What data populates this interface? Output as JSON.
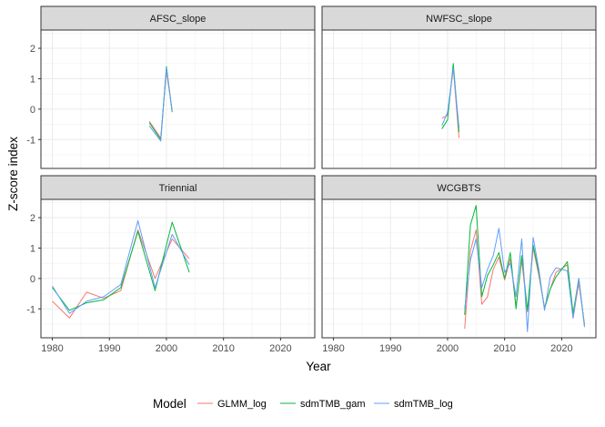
{
  "chart_data": {
    "type": "line",
    "xlabel": "Year",
    "ylabel": "Z-score index",
    "xlim": [
      1978,
      2026
    ],
    "ylim": [
      -1.95,
      2.6
    ],
    "x_ticks": [
      1980,
      1990,
      2000,
      2010,
      2020
    ],
    "y_ticks": [
      -1,
      0,
      1,
      2
    ],
    "grid": true,
    "legend": {
      "title": "Model",
      "position": "bottom",
      "entries": [
        {
          "name": "GLMM_log",
          "color": "#F8766D"
        },
        {
          "name": "sdmTMB_gam",
          "color": "#00BA38"
        },
        {
          "name": "sdmTMB_log",
          "color": "#619CFF"
        }
      ]
    },
    "panels": [
      {
        "title": "AFSC_slope",
        "series": [
          {
            "name": "GLMM_log",
            "x": [
              1997,
              1999,
              2000,
              2001
            ],
            "y": [
              -0.4,
              -0.95,
              1.25,
              -0.05
            ]
          },
          {
            "name": "sdmTMB_gam",
            "x": [
              1997,
              1999,
              2000,
              2001
            ],
            "y": [
              -0.45,
              -1.0,
              1.4,
              -0.1
            ]
          },
          {
            "name": "sdmTMB_log",
            "x": [
              1997,
              1999,
              2000,
              2001
            ],
            "y": [
              -0.55,
              -1.05,
              1.35,
              -0.05
            ]
          }
        ]
      },
      {
        "title": "NWFSC_slope",
        "series": [
          {
            "name": "GLMM_log",
            "x": [
              1999,
              2000,
              2001,
              2002
            ],
            "y": [
              -0.3,
              -0.2,
              1.35,
              -0.95
            ]
          },
          {
            "name": "sdmTMB_gam",
            "x": [
              1999,
              2000,
              2001,
              2002
            ],
            "y": [
              -0.65,
              -0.35,
              1.5,
              -0.75
            ]
          },
          {
            "name": "sdmTMB_log",
            "x": [
              1999,
              2000,
              2001,
              2002
            ],
            "y": [
              -0.55,
              -0.1,
              1.35,
              -0.6
            ]
          }
        ]
      },
      {
        "title": "Triennial",
        "series": [
          {
            "name": "GLMM_log",
            "x": [
              1980,
              1983,
              1986,
              1989,
              1992,
              1995,
              1998,
              2001,
              2004
            ],
            "y": [
              -0.75,
              -1.3,
              -0.45,
              -0.65,
              -0.4,
              1.6,
              0.0,
              1.3,
              0.65
            ]
          },
          {
            "name": "sdmTMB_gam",
            "x": [
              1980,
              1983,
              1986,
              1989,
              1992,
              1995,
              1998,
              2001,
              2004
            ],
            "y": [
              -0.3,
              -1.05,
              -0.8,
              -0.7,
              -0.3,
              1.55,
              -0.4,
              1.85,
              0.2
            ]
          },
          {
            "name": "sdmTMB_log",
            "x": [
              1980,
              1983,
              1986,
              1989,
              1992,
              1995,
              1998,
              2001,
              2004
            ],
            "y": [
              -0.25,
              -1.15,
              -0.75,
              -0.6,
              -0.2,
              1.9,
              -0.3,
              1.45,
              0.45
            ]
          }
        ]
      },
      {
        "title": "WCGBTS",
        "series": [
          {
            "name": "GLMM_log",
            "x": [
              2003,
              2004,
              2005,
              2006,
              2007,
              2008,
              2009,
              2010,
              2011,
              2012,
              2013,
              2014,
              2015,
              2016,
              2017,
              2018,
              2019,
              2021,
              2022,
              2023,
              2024
            ],
            "y": [
              -1.65,
              0.9,
              1.6,
              -0.85,
              -0.6,
              0.3,
              0.7,
              -0.05,
              0.65,
              -0.9,
              0.6,
              -1.1,
              1.0,
              0.1,
              -0.95,
              -0.35,
              0.2,
              0.45,
              -1.3,
              -0.15,
              -1.5
            ]
          },
          {
            "name": "sdmTMB_gam",
            "x": [
              2003,
              2004,
              2005,
              2006,
              2007,
              2008,
              2009,
              2010,
              2011,
              2012,
              2013,
              2014,
              2015,
              2016,
              2017,
              2018,
              2019,
              2021,
              2022,
              2023,
              2024
            ],
            "y": [
              -1.2,
              1.75,
              2.4,
              -0.6,
              0.1,
              0.45,
              0.85,
              0.0,
              0.85,
              -1.0,
              0.75,
              -1.05,
              1.1,
              0.2,
              -1.0,
              -0.35,
              0.05,
              0.55,
              -1.15,
              0.0,
              -1.55
            ]
          },
          {
            "name": "sdmTMB_log",
            "x": [
              2003,
              2004,
              2005,
              2006,
              2007,
              2008,
              2009,
              2010,
              2011,
              2012,
              2013,
              2014,
              2015,
              2016,
              2017,
              2018,
              2019,
              2021,
              2022,
              2023,
              2024
            ],
            "y": [
              -1.0,
              0.6,
              1.3,
              -0.3,
              0.3,
              0.75,
              1.65,
              0.2,
              0.5,
              -0.6,
              1.3,
              -1.75,
              1.35,
              0.3,
              -1.05,
              0.05,
              0.35,
              0.25,
              -1.3,
              0.0,
              -1.6
            ]
          }
        ]
      }
    ]
  }
}
